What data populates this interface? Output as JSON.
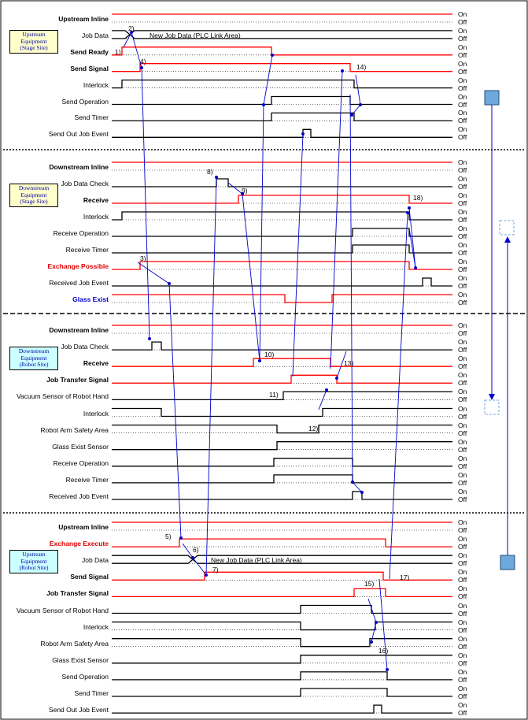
{
  "sections": [
    {
      "id": "s1",
      "title": [
        "Upstream",
        "Equipment",
        "(Stage Site)"
      ],
      "style": "yellow",
      "signals": [
        {
          "label": "Upstream Inline",
          "bold": true,
          "color": "black",
          "line": "red"
        },
        {
          "label": "Job Data",
          "bold": false,
          "color": "black",
          "line": "jobdata"
        },
        {
          "label": "Send Ready",
          "bold": true,
          "color": "black",
          "line": "red"
        },
        {
          "label": "Send Signal",
          "bold": true,
          "color": "black",
          "line": "red"
        },
        {
          "label": "Interlock",
          "bold": false,
          "color": "black",
          "line": "black"
        },
        {
          "label": "Send Operation",
          "bold": false,
          "color": "black",
          "line": "black"
        },
        {
          "label": "Send Timer",
          "bold": false,
          "color": "black",
          "line": "black"
        },
        {
          "label": "Send Out Job Event",
          "bold": false,
          "color": "black",
          "line": "black"
        }
      ]
    },
    {
      "id": "s2",
      "title": [
        "Downstream",
        "Equipment",
        "(Stage Site)"
      ],
      "style": "yellow",
      "signals": [
        {
          "label": "Downstream Inline",
          "bold": true,
          "color": "black",
          "line": "red"
        },
        {
          "label": "Job Data Check",
          "bold": false,
          "color": "black",
          "line": "black"
        },
        {
          "label": "Receive",
          "bold": true,
          "color": "black",
          "line": "red"
        },
        {
          "label": "Interlock",
          "bold": false,
          "color": "black",
          "line": "black"
        },
        {
          "label": "Receive Operation",
          "bold": false,
          "color": "black",
          "line": "black"
        },
        {
          "label": "Receive Timer",
          "bold": false,
          "color": "black",
          "line": "black"
        },
        {
          "label": "Exchange Possible",
          "bold": true,
          "color": "red",
          "line": "red"
        },
        {
          "label": "Received Job Event",
          "bold": false,
          "color": "black",
          "line": "black"
        },
        {
          "label": "Glass Exist",
          "bold": true,
          "color": "blue",
          "line": "red"
        }
      ]
    },
    {
      "id": "s3",
      "title": [
        "Downstream",
        "Equipment",
        "(Robot Site)"
      ],
      "style": "green",
      "signals": [
        {
          "label": "Downstream Inline",
          "bold": true,
          "color": "black",
          "line": "red"
        },
        {
          "label": "Job Data Check",
          "bold": false,
          "color": "black",
          "line": "black"
        },
        {
          "label": "Receive",
          "bold": true,
          "color": "black",
          "line": "red"
        },
        {
          "label": "Job Transfer Signal",
          "bold": true,
          "color": "black",
          "line": "red"
        },
        {
          "label": "Vacuum Sensor of Robot Hand",
          "bold": false,
          "color": "black",
          "line": "black"
        },
        {
          "label": "Interlock",
          "bold": false,
          "color": "black",
          "line": "black"
        },
        {
          "label": "Robot Arm Safety Area",
          "bold": false,
          "color": "black",
          "line": "black"
        },
        {
          "label": "Glass Exist Sensor",
          "bold": false,
          "color": "black",
          "line": "black"
        },
        {
          "label": "Receive Operation",
          "bold": false,
          "color": "black",
          "line": "black"
        },
        {
          "label": "Receive Timer",
          "bold": false,
          "color": "black",
          "line": "black"
        },
        {
          "label": "Received Job Event",
          "bold": false,
          "color": "black",
          "line": "black"
        }
      ]
    },
    {
      "id": "s4",
      "title": [
        "Upstream",
        "Equipment",
        "(Robot Site)"
      ],
      "style": "green",
      "signals": [
        {
          "label": "Upstream Inline",
          "bold": true,
          "color": "black",
          "line": "red"
        },
        {
          "label": "Exchange Execute",
          "bold": true,
          "color": "red",
          "line": "red"
        },
        {
          "label": "Job Data",
          "bold": false,
          "color": "black",
          "line": "jobdata"
        },
        {
          "label": "Send Signal",
          "bold": true,
          "color": "black",
          "line": "red"
        },
        {
          "label": "Job Transfer Signal",
          "bold": true,
          "color": "black",
          "line": "red"
        },
        {
          "label": "Vacuum Sensor of Robot Hand",
          "bold": false,
          "color": "black",
          "line": "black"
        },
        {
          "label": "Interlock",
          "bold": false,
          "color": "black",
          "line": "black"
        },
        {
          "label": "Robot Arm Safety Area",
          "bold": false,
          "color": "black",
          "line": "black"
        },
        {
          "label": "Glass Exist Sensor",
          "bold": false,
          "color": "black",
          "line": "black"
        },
        {
          "label": "Send Operation",
          "bold": false,
          "color": "black",
          "line": "black"
        },
        {
          "label": "Send Timer",
          "bold": false,
          "color": "black",
          "line": "black"
        },
        {
          "label": "Send Out Job Event",
          "bold": false,
          "color": "black",
          "line": "black"
        }
      ]
    }
  ],
  "on_label": "On",
  "off_label": "Off",
  "job_data_text": "New Job Data (PLC Link Area)",
  "steps": [
    "1)",
    "2)",
    "3)",
    "4)",
    "5)",
    "6)",
    "7)",
    "8)",
    "9)",
    "10)",
    "11)",
    "12)",
    "13)",
    "14)",
    "15)",
    "16)",
    "17)",
    "18)"
  ],
  "colors": {
    "signal_red": "#ff0000",
    "signal_black": "#000000",
    "arrow_blue": "#0000cc",
    "box_blue": "#6fa8dc",
    "yellow_box": "#ffffcc",
    "green_box": "#ccffff"
  }
}
